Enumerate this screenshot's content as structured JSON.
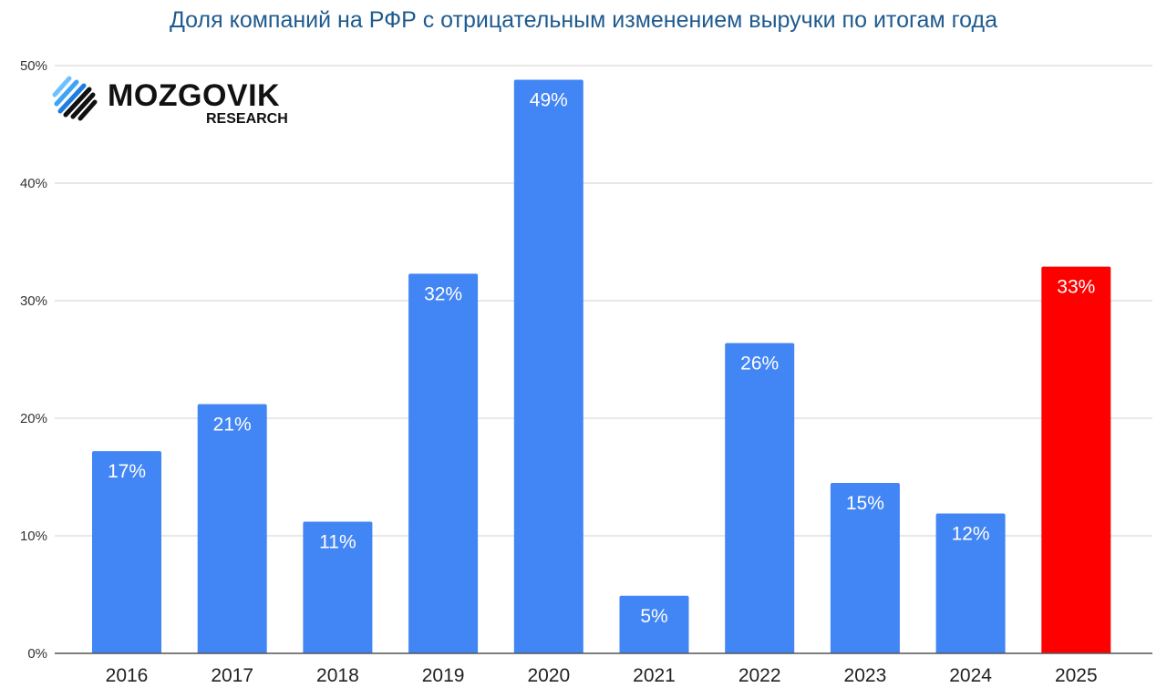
{
  "chart_data": {
    "type": "bar",
    "title": "Доля компаний на РФР с отрицательным изменением выручки по итогам года",
    "xlabel": "",
    "ylabel": "",
    "categories": [
      "2016",
      "2017",
      "2018",
      "2019",
      "2020",
      "2021",
      "2022",
      "2023",
      "2024",
      "2025"
    ],
    "values": [
      17.2,
      21.2,
      11.2,
      32.3,
      48.8,
      4.9,
      26.4,
      14.5,
      11.9,
      32.9
    ],
    "data_labels": [
      "17%",
      "21%",
      "11%",
      "32%",
      "49%",
      "5%",
      "26%",
      "15%",
      "12%",
      "33%"
    ],
    "ylim": [
      0,
      50
    ],
    "yticks": [
      0,
      10,
      20,
      30,
      40,
      50
    ],
    "ytick_labels": [
      "0%",
      "10%",
      "20%",
      "30%",
      "40%",
      "50%"
    ],
    "grid": true,
    "legend": "none",
    "colors": {
      "default_bar": "#4285f4",
      "highlight_bar": "#ff0000",
      "title": "#1f5b8f",
      "gridline": "#d9d9d9",
      "axis": "#555555"
    },
    "highlight_index": 9
  },
  "logo": {
    "name": "MOZGOVIK",
    "subtitle": "RESEARCH",
    "icon": "diagonal-stripes-logo-icon"
  }
}
